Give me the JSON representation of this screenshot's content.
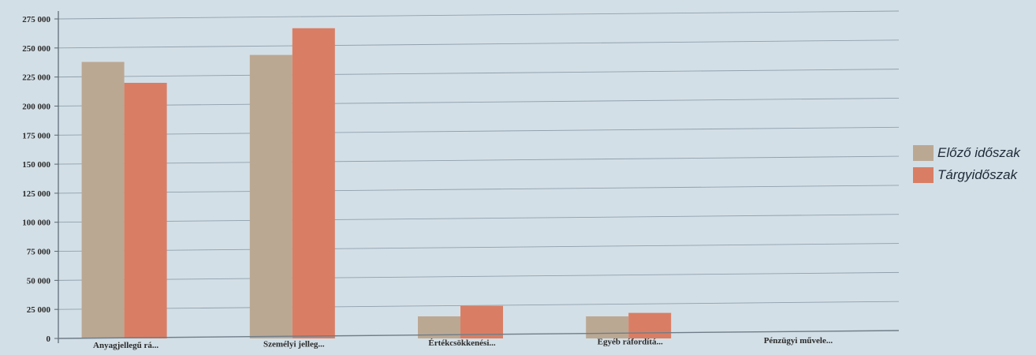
{
  "chart_data": {
    "type": "bar",
    "categories": [
      "Anyagjellegű rá...",
      "Személyi jelleg...",
      "Értékcsökkenési...",
      "Egyéb ráfordítá...",
      "Pénzügyi művele..."
    ],
    "series": [
      {
        "name": "Előző időszak",
        "color": "#bba893",
        "values": [
          238000,
          244000,
          19000,
          19000,
          0
        ]
      },
      {
        "name": "Tárgyidőszak",
        "color": "#d97e64",
        "values": [
          220000,
          267000,
          28000,
          22000,
          0
        ]
      }
    ],
    "y_ticks": [
      "0",
      "25 000",
      "50 000",
      "75 000",
      "100 000",
      "125 000",
      "150 000",
      "175 000",
      "200 000",
      "225 000",
      "250 000",
      "275 000"
    ],
    "ylim": [
      0,
      275000
    ],
    "grid": true,
    "legend_position": "right",
    "title": "",
    "xlabel": "",
    "ylabel": ""
  }
}
